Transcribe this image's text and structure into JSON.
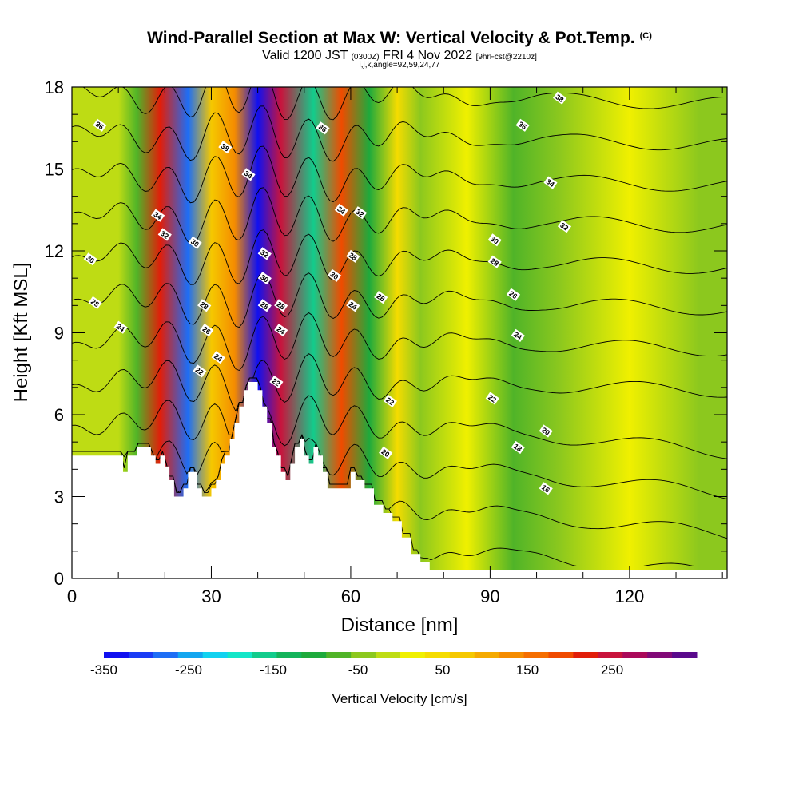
{
  "title": {
    "main": "Wind-Parallel Section at Max W: Vertical Velocity & Pot.Temp.",
    "copyright": "(C)",
    "valid_prefix": "Valid 1200 JST",
    "valid_zulu": "(0300Z)",
    "valid_date": "FRI 4 Nov 2022",
    "forecast": "[9hrFcst@2210z]",
    "indices": "i,j,k,angle=92,59,24,77"
  },
  "chart_data": {
    "type": "heatmap",
    "xlabel": "Distance [nm]",
    "ylabel": "Height [Kft MSL]",
    "xlim": [
      0,
      141
    ],
    "ylim": [
      0,
      18
    ],
    "x_ticks": [
      0,
      30,
      60,
      90,
      120
    ],
    "y_ticks": [
      0,
      3,
      6,
      9,
      12,
      15,
      18
    ],
    "colorbar": {
      "label": "Vertical Velocity [cm/s]",
      "tick_labels": [
        "-350",
        "-250",
        "-150",
        "-50",
        "50",
        "150",
        "250"
      ],
      "tick_values": [
        -350,
        -250,
        -150,
        -50,
        50,
        150,
        250
      ],
      "range": [
        -350,
        350
      ],
      "colors": [
        "#1010f0",
        "#1a3cf5",
        "#1e6ef5",
        "#14a6f0",
        "#12d2f0",
        "#14e6c8",
        "#12cc8c",
        "#14b45a",
        "#1eaa3c",
        "#50b428",
        "#8cc81e",
        "#bedc14",
        "#f0f000",
        "#f5dc00",
        "#f5c800",
        "#f5aa00",
        "#f58c00",
        "#f56e00",
        "#f04b00",
        "#e11e0a",
        "#c8143c",
        "#aa0a5a",
        "#820a78",
        "#5a0a8c"
      ]
    },
    "vertical_velocity_bands": [
      {
        "x": 10,
        "w": -20
      },
      {
        "x": 14,
        "w": -80
      },
      {
        "x": 19,
        "w": 220
      },
      {
        "x": 25,
        "w": -280
      },
      {
        "x": 30,
        "w": 60
      },
      {
        "x": 35,
        "w": 120
      },
      {
        "x": 40,
        "w": -330
      },
      {
        "x": 45,
        "w": 250
      },
      {
        "x": 52,
        "w": -150
      },
      {
        "x": 58,
        "w": 200
      },
      {
        "x": 64,
        "w": -100
      },
      {
        "x": 70,
        "w": 40
      },
      {
        "x": 75,
        "w": -40
      },
      {
        "x": 85,
        "w": 20
      },
      {
        "x": 95,
        "w": -60
      },
      {
        "x": 105,
        "w": -50
      },
      {
        "x": 120,
        "w": 15
      },
      {
        "x": 135,
        "w": -40
      }
    ],
    "terrain_kft": [
      {
        "x": 0,
        "h": 4.5
      },
      {
        "x": 10,
        "h": 4.5
      },
      {
        "x": 11,
        "h": 3.9
      },
      {
        "x": 12,
        "h": 4.5
      },
      {
        "x": 14,
        "h": 4.8
      },
      {
        "x": 16,
        "h": 4.8
      },
      {
        "x": 17,
        "h": 4.5
      },
      {
        "x": 18,
        "h": 4.2
      },
      {
        "x": 19,
        "h": 4.5
      },
      {
        "x": 20,
        "h": 4.1
      },
      {
        "x": 21,
        "h": 3.6
      },
      {
        "x": 22,
        "h": 3.0
      },
      {
        "x": 23,
        "h": 3.0
      },
      {
        "x": 24,
        "h": 3.3
      },
      {
        "x": 25,
        "h": 3.9
      },
      {
        "x": 26,
        "h": 3.9
      },
      {
        "x": 27,
        "h": 3.3
      },
      {
        "x": 28,
        "h": 3.0
      },
      {
        "x": 29,
        "h": 3.0
      },
      {
        "x": 30,
        "h": 3.3
      },
      {
        "x": 31,
        "h": 3.6
      },
      {
        "x": 32,
        "h": 4.2
      },
      {
        "x": 33,
        "h": 4.5
      },
      {
        "x": 34,
        "h": 5.1
      },
      {
        "x": 35,
        "h": 5.7
      },
      {
        "x": 36,
        "h": 6.3
      },
      {
        "x": 37,
        "h": 6.9
      },
      {
        "x": 38,
        "h": 7.2
      },
      {
        "x": 39,
        "h": 7.2
      },
      {
        "x": 40,
        "h": 6.9
      },
      {
        "x": 41,
        "h": 6.3
      },
      {
        "x": 42,
        "h": 5.7
      },
      {
        "x": 43,
        "h": 4.8
      },
      {
        "x": 44,
        "h": 4.5
      },
      {
        "x": 45,
        "h": 3.9
      },
      {
        "x": 46,
        "h": 3.6
      },
      {
        "x": 47,
        "h": 4.2
      },
      {
        "x": 48,
        "h": 4.8
      },
      {
        "x": 49,
        "h": 5.1
      },
      {
        "x": 50,
        "h": 4.5
      },
      {
        "x": 51,
        "h": 4.2
      },
      {
        "x": 52,
        "h": 4.8
      },
      {
        "x": 53,
        "h": 4.5
      },
      {
        "x": 54,
        "h": 3.9
      },
      {
        "x": 55,
        "h": 3.3
      },
      {
        "x": 58,
        "h": 3.3
      },
      {
        "x": 60,
        "h": 3.9
      },
      {
        "x": 61,
        "h": 3.6
      },
      {
        "x": 63,
        "h": 3.3
      },
      {
        "x": 65,
        "h": 2.7
      },
      {
        "x": 67,
        "h": 2.4
      },
      {
        "x": 69,
        "h": 2.1
      },
      {
        "x": 71,
        "h": 1.5
      },
      {
        "x": 73,
        "h": 0.9
      },
      {
        "x": 75,
        "h": 0.6
      },
      {
        "x": 77,
        "h": 0.3
      },
      {
        "x": 78,
        "h": 0.3
      },
      {
        "x": 141,
        "h": 0.3
      }
    ],
    "theta_contour_levels": [
      16,
      18,
      20,
      22,
      24,
      26,
      28,
      30,
      32,
      34,
      36,
      38
    ],
    "contour_labels": [
      {
        "text": "36",
        "x": 6,
        "y": 16.6
      },
      {
        "text": "34",
        "x": 18.5,
        "y": 13.3
      },
      {
        "text": "32",
        "x": 20,
        "y": 12.6
      },
      {
        "text": "30",
        "x": 4,
        "y": 11.7
      },
      {
        "text": "28",
        "x": 5,
        "y": 10.1
      },
      {
        "text": "24",
        "x": 10.5,
        "y": 9.2
      },
      {
        "text": "38",
        "x": 33,
        "y": 15.8
      },
      {
        "text": "34",
        "x": 38,
        "y": 14.8
      },
      {
        "text": "30",
        "x": 26.5,
        "y": 12.3
      },
      {
        "text": "28",
        "x": 28.5,
        "y": 10.0
      },
      {
        "text": "26",
        "x": 29,
        "y": 9.1
      },
      {
        "text": "24",
        "x": 31.5,
        "y": 8.1
      },
      {
        "text": "22",
        "x": 27.5,
        "y": 7.6
      },
      {
        "text": "32",
        "x": 41.5,
        "y": 11.9
      },
      {
        "text": "30",
        "x": 41.5,
        "y": 11.0
      },
      {
        "text": "28",
        "x": 41.5,
        "y": 10.0
      },
      {
        "text": "28",
        "x": 45,
        "y": 10.0
      },
      {
        "text": "24",
        "x": 45,
        "y": 9.1
      },
      {
        "text": "22",
        "x": 44,
        "y": 7.2
      },
      {
        "text": "36",
        "x": 54,
        "y": 16.5
      },
      {
        "text": "34",
        "x": 58,
        "y": 13.5
      },
      {
        "text": "32",
        "x": 62,
        "y": 13.4
      },
      {
        "text": "28",
        "x": 60.5,
        "y": 11.8
      },
      {
        "text": "30",
        "x": 56.5,
        "y": 11.1
      },
      {
        "text": "24",
        "x": 60.5,
        "y": 10.0
      },
      {
        "text": "26",
        "x": 66.5,
        "y": 10.3
      },
      {
        "text": "22",
        "x": 68.5,
        "y": 6.5
      },
      {
        "text": "20",
        "x": 67.5,
        "y": 4.6
      },
      {
        "text": "38",
        "x": 105,
        "y": 17.6
      },
      {
        "text": "36",
        "x": 97,
        "y": 16.6
      },
      {
        "text": "34",
        "x": 103,
        "y": 14.5
      },
      {
        "text": "32",
        "x": 106,
        "y": 12.9
      },
      {
        "text": "30",
        "x": 91,
        "y": 12.4
      },
      {
        "text": "28",
        "x": 91,
        "y": 11.6
      },
      {
        "text": "26",
        "x": 95,
        "y": 10.4
      },
      {
        "text": "24",
        "x": 96,
        "y": 8.9
      },
      {
        "text": "22",
        "x": 90.5,
        "y": 6.6
      },
      {
        "text": "20",
        "x": 102,
        "y": 5.4
      },
      {
        "text": "18",
        "x": 96,
        "y": 4.8
      },
      {
        "text": "16",
        "x": 102,
        "y": 3.3
      }
    ]
  }
}
